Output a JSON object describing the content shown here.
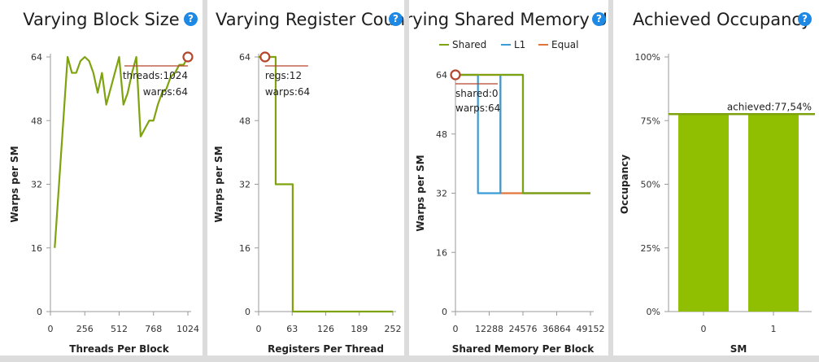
{
  "help_glyph": "?",
  "colors": {
    "shared": "#7ea30f",
    "l1": "#3a9bd5",
    "equal": "#e0763b",
    "bar": "#8fbf00",
    "marker": "#b5452b",
    "axis": "#9a9a9a"
  },
  "chart_data": [
    {
      "type": "line",
      "title": "Varying Block Size",
      "xlabel": "Threads Per Block",
      "ylabel": "Warps per SM",
      "xlim": [
        0,
        1024
      ],
      "ylim": [
        0,
        64
      ],
      "xticks": [
        "0",
        "256",
        "512",
        "768",
        "1024"
      ],
      "yticks": [
        "0",
        "16",
        "32",
        "48",
        "64"
      ],
      "series": [
        {
          "x": [
            32,
            64,
            96,
            128,
            160,
            192,
            224,
            256,
            288,
            320,
            352,
            384,
            416,
            448,
            480,
            512,
            544,
            576,
            608,
            640,
            672,
            704,
            736,
            768,
            800,
            832,
            864,
            896,
            928,
            960,
            992,
            1024
          ],
          "y": [
            16,
            32,
            48,
            64,
            60,
            60,
            63,
            64,
            63,
            60,
            55,
            60,
            52,
            56,
            60,
            64,
            52,
            55,
            60,
            64,
            44,
            46,
            48,
            48,
            52,
            55,
            56,
            59,
            60,
            62,
            62,
            64
          ]
        }
      ],
      "marker": {
        "x": 1024,
        "y": 64,
        "lines": [
          "threads:1024",
          "warps:64"
        ]
      }
    },
    {
      "type": "line",
      "title": "Varying Register Count",
      "xlabel": "Registers Per Thread",
      "ylabel": "Warps per SM",
      "xlim": [
        0,
        252
      ],
      "ylim": [
        0,
        64
      ],
      "xticks": [
        "0",
        "63",
        "126",
        "189",
        "252"
      ],
      "yticks": [
        "0",
        "16",
        "32",
        "48",
        "64"
      ],
      "series": [
        {
          "x": [
            0,
            12,
            32,
            32,
            40,
            40,
            64,
            64,
            252
          ],
          "y": [
            64,
            64,
            64,
            32,
            32,
            32,
            32,
            0,
            0
          ]
        }
      ],
      "marker": {
        "x": 12,
        "y": 64,
        "lines": [
          "regs:12",
          "warps:64"
        ]
      }
    },
    {
      "type": "line",
      "title": "Varying Shared Memory Usage",
      "xlabel": "Shared Memory Per Block",
      "ylabel": "Warps per SM",
      "xlim": [
        0,
        49152
      ],
      "ylim": [
        0,
        64
      ],
      "xticks": [
        "0",
        "12288",
        "24576",
        "36864",
        "49152"
      ],
      "yticks": [
        "0",
        "16",
        "32",
        "48",
        "64"
      ],
      "legend": "top",
      "series": [
        {
          "name": "Shared",
          "x": [
            0,
            24576,
            24576,
            49152
          ],
          "y": [
            64,
            64,
            32,
            32
          ]
        },
        {
          "name": "L1",
          "x": [
            0,
            8192,
            8192,
            16384,
            16384,
            24576,
            24576,
            49152
          ],
          "y": [
            64,
            64,
            32,
            32,
            64,
            64,
            32,
            32
          ]
        },
        {
          "name": "Equal",
          "x": [
            0,
            16384,
            16384,
            49152
          ],
          "y": [
            64,
            64,
            32,
            32
          ]
        }
      ],
      "marker": {
        "x": 0,
        "y": 64,
        "lines": [
          "shared:0",
          "warps:64"
        ]
      }
    },
    {
      "type": "bar",
      "title": "Achieved Occupancy",
      "xlabel": "SM",
      "ylabel": "Occupancy",
      "ylim": [
        0,
        100
      ],
      "yticks": [
        "0%",
        "25%",
        "50%",
        "75%",
        "100%"
      ],
      "categories": [
        "0",
        "1"
      ],
      "values": [
        77.54,
        77.54
      ],
      "reference": {
        "value": 77.54,
        "label": "achieved:77,54%"
      }
    }
  ]
}
